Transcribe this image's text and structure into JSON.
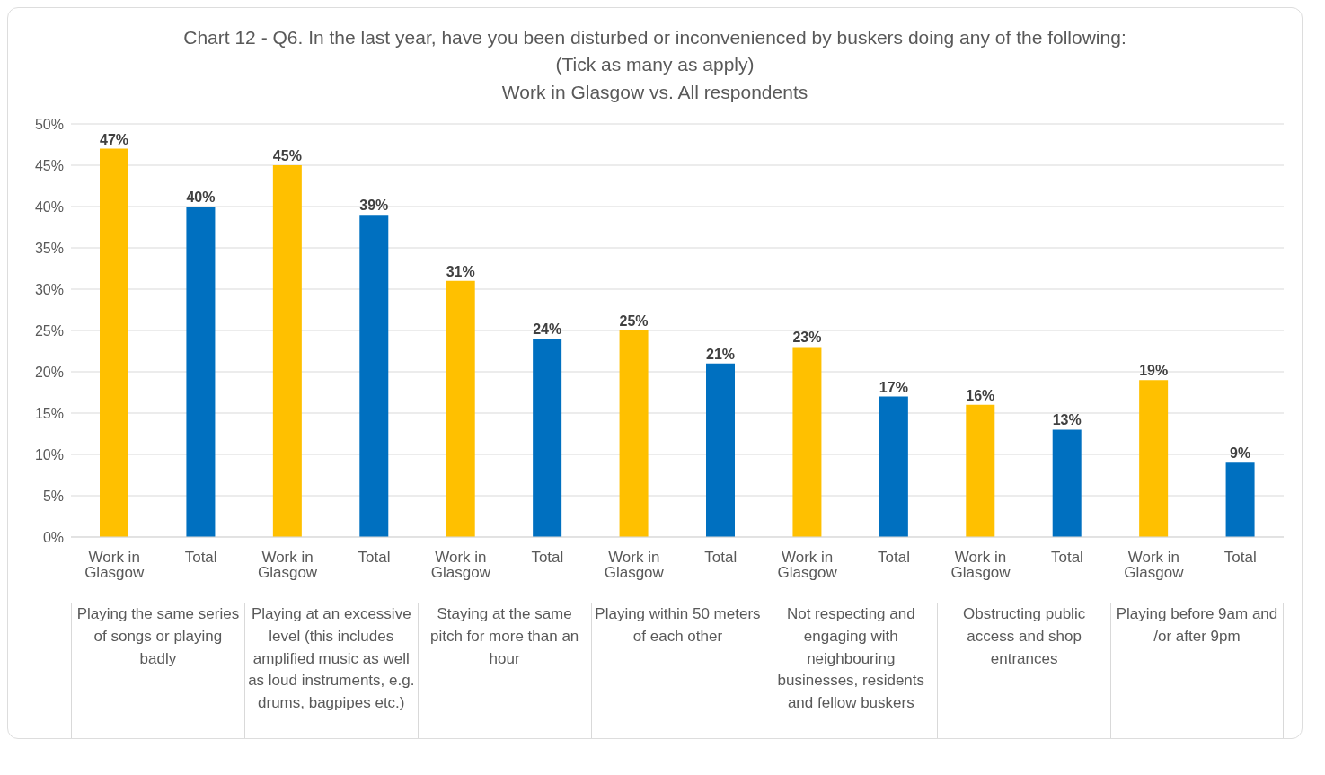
{
  "chart_data": {
    "type": "bar",
    "title": "Chart 12 - Q6. In the last year, have you been disturbed or inconvenienced by buskers doing any of the following: (Tick as many as apply)",
    "subtitle": "Work in Glasgow vs. All respondents",
    "categories": [
      "Work in Glasgow",
      "Total",
      "Work in Glasgow",
      "Total",
      "Work in Glasgow",
      "Total",
      "Work in Glasgow",
      "Total",
      "Work in Glasgow",
      "Total",
      "Work in Glasgow",
      "Total",
      "Work in Glasgow",
      "Total"
    ],
    "values": [
      47,
      40,
      45,
      39,
      31,
      24,
      25,
      21,
      23,
      17,
      16,
      13,
      19,
      9
    ],
    "colors": [
      "#ffc000",
      "#0070c0",
      "#ffc000",
      "#0070c0",
      "#ffc000",
      "#0070c0",
      "#ffc000",
      "#0070c0",
      "#ffc000",
      "#0070c0",
      "#ffc000",
      "#0070c0",
      "#ffc000",
      "#0070c0"
    ],
    "value_labels": [
      "47%",
      "40%",
      "45%",
      "39%",
      "31%",
      "24%",
      "25%",
      "21%",
      "23%",
      "17%",
      "16%",
      "13%",
      "19%",
      "9%"
    ],
    "annotations": [
      "Playing the same series of songs or playing badly",
      "Playing at an excessive level (this includes amplified music as well as loud instruments, e.g. drums, bagpipes etc.)",
      "Staying at the same pitch for more than an hour",
      "Playing within 50 meters of each other",
      "Not respecting and engaging with neighbouring businesses, residents and fellow buskers",
      "Obstructing public access and shop entrances",
      "Playing before 9am and /or after 9pm"
    ],
    "ylim": [
      0,
      50
    ],
    "yticks": [
      {
        "value": 0,
        "label": "0%"
      },
      {
        "value": 5,
        "label": "5%"
      },
      {
        "value": 10,
        "label": "10%"
      },
      {
        "value": 15,
        "label": "15%"
      },
      {
        "value": 20,
        "label": "20%"
      },
      {
        "value": 25,
        "label": "25%"
      },
      {
        "value": 30,
        "label": "30%"
      },
      {
        "value": 35,
        "label": "35%"
      },
      {
        "value": 40,
        "label": "40%"
      },
      {
        "value": 45,
        "label": "45%"
      },
      {
        "value": 50,
        "label": "50%"
      }
    ],
    "grid": "y",
    "legend": false
  }
}
